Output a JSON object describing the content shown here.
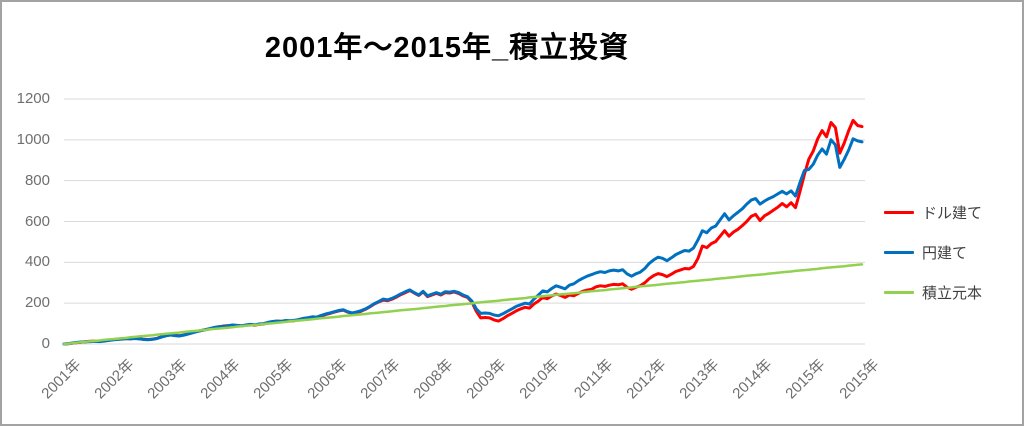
{
  "title": "2001年～2015年_積立投資",
  "legend": {
    "position": "right",
    "items": [
      {
        "label": "ドル建て",
        "color": "#FF0000"
      },
      {
        "label": "円建て",
        "color": "#0070C0"
      },
      {
        "label": "積立元本",
        "color": "#92D050"
      }
    ]
  },
  "chart_data": {
    "type": "line",
    "title": "2001年～2015年_積立投資",
    "xlabel": "",
    "ylabel": "",
    "x_unit": "month",
    "x_start": "2001-01",
    "x_end": "2016-01",
    "xtick_labels": [
      "2001年",
      "2002年",
      "2003年",
      "2004年",
      "2005年",
      "2006年",
      "2007年",
      "2008年",
      "2009年",
      "2010年",
      "2011年",
      "2012年",
      "2013年",
      "2014年",
      "2015年",
      "2015年"
    ],
    "yticks": [
      0,
      200,
      400,
      600,
      800,
      1000,
      1200
    ],
    "ylim": [
      0,
      1200
    ],
    "grid": "horizontal",
    "gridline_color": "#d9d9d9",
    "axis_label_color": "#6f6f6f",
    "legend_position": "right",
    "series": [
      {
        "name": "ドル建て",
        "key": "dollar",
        "color": "#FF0000",
        "width": 3,
        "values": [
          0,
          2,
          4,
          7,
          9,
          12,
          13,
          14,
          13,
          15,
          18,
          21,
          24,
          26,
          27,
          26,
          28,
          26,
          23,
          22,
          24,
          28,
          36,
          41,
          45,
          42,
          40,
          44,
          50,
          56,
          62,
          66,
          70,
          74,
          80,
          84,
          88,
          90,
          92,
          90,
          88,
          92,
          94,
          92,
          96,
          98,
          104,
          108,
          112,
          110,
          114,
          112,
          114,
          118,
          124,
          126,
          130,
          128,
          136,
          144,
          150,
          156,
          162,
          166,
          156,
          150,
          154,
          160,
          170,
          182,
          196,
          206,
          215,
          212,
          220,
          230,
          242,
          252,
          262,
          250,
          238,
          255,
          232,
          240,
          248,
          240,
          252,
          250,
          255,
          248,
          236,
          228,
          205,
          160,
          128,
          130,
          128,
          118,
          112,
          124,
          138,
          150,
          162,
          172,
          180,
          176,
          196,
          210,
          228,
          222,
          235,
          245,
          238,
          228,
          240,
          236,
          248,
          258,
          264,
          268,
          280,
          285,
          282,
          288,
          292,
          290,
          295,
          278,
          268,
          278,
          285,
          300,
          320,
          335,
          345,
          340,
          330,
          342,
          355,
          362,
          370,
          368,
          380,
          420,
          480,
          472,
          492,
          502,
          528,
          555,
          528,
          548,
          562,
          580,
          600,
          625,
          635,
          605,
          628,
          640,
          655,
          670,
          688,
          672,
          692,
          668,
          745,
          830,
          905,
          945,
          1005,
          1045,
          1015,
          1085,
          1060,
          935,
          985,
          1045,
          1095,
          1070,
          1065
        ]
      },
      {
        "name": "円建て",
        "key": "yen",
        "color": "#0070C0",
        "width": 3,
        "values": [
          0,
          2,
          5,
          8,
          10,
          11,
          12,
          13,
          12,
          14,
          17,
          20,
          22,
          24,
          26,
          25,
          27,
          25,
          22,
          21,
          23,
          27,
          34,
          40,
          44,
          41,
          39,
          43,
          49,
          55,
          61,
          66,
          71,
          76,
          82,
          85,
          86,
          89,
          93,
          91,
          89,
          93,
          96,
          94,
          98,
          100,
          106,
          110,
          112,
          111,
          115,
          114,
          116,
          120,
          126,
          129,
          133,
          132,
          140,
          147,
          152,
          158,
          164,
          168,
          158,
          152,
          157,
          163,
          172,
          184,
          198,
          208,
          220,
          216,
          224,
          234,
          246,
          256,
          265,
          252,
          240,
          258,
          236,
          244,
          252,
          244,
          256,
          254,
          258,
          252,
          240,
          232,
          210,
          172,
          150,
          152,
          150,
          142,
          138,
          148,
          160,
          172,
          184,
          192,
          200,
          196,
          220,
          240,
          260,
          255,
          272,
          285,
          278,
          270,
          288,
          295,
          310,
          322,
          332,
          340,
          348,
          354,
          350,
          358,
          362,
          358,
          364,
          344,
          332,
          344,
          352,
          370,
          395,
          412,
          425,
          420,
          408,
          422,
          438,
          448,
          458,
          455,
          470,
          510,
          555,
          545,
          568,
          578,
          608,
          638,
          608,
          628,
          645,
          662,
          685,
          705,
          712,
          685,
          700,
          712,
          722,
          735,
          748,
          735,
          750,
          725,
          790,
          850,
          855,
          880,
          925,
          955,
          930,
          1000,
          975,
          865,
          905,
          950,
          1005,
          995,
          990
        ]
      },
      {
        "name": "積立元本",
        "key": "principal",
        "color": "#92D050",
        "width": 2.5,
        "values": [
          0,
          2,
          4,
          7,
          9,
          11,
          13,
          15,
          17,
          20,
          22,
          24,
          26,
          28,
          30,
          33,
          35,
          37,
          39,
          41,
          43,
          46,
          48,
          50,
          52,
          54,
          56,
          59,
          61,
          63,
          65,
          67,
          69,
          72,
          74,
          76,
          78,
          80,
          82,
          85,
          87,
          89,
          91,
          93,
          95,
          98,
          100,
          102,
          104,
          106,
          108,
          111,
          113,
          115,
          117,
          119,
          121,
          124,
          126,
          128,
          130,
          132,
          134,
          137,
          139,
          141,
          143,
          145,
          147,
          150,
          152,
          154,
          156,
          158,
          160,
          163,
          165,
          167,
          169,
          171,
          173,
          176,
          178,
          180,
          182,
          184,
          186,
          189,
          191,
          193,
          195,
          197,
          199,
          202,
          204,
          206,
          208,
          210,
          212,
          215,
          217,
          219,
          221,
          223,
          225,
          228,
          230,
          232,
          234,
          236,
          238,
          241,
          243,
          245,
          247,
          249,
          251,
          254,
          256,
          258,
          260,
          262,
          264,
          267,
          269,
          271,
          273,
          275,
          277,
          280,
          282,
          284,
          286,
          288,
          290,
          293,
          295,
          297,
          299,
          301,
          303,
          306,
          308,
          310,
          312,
          314,
          316,
          319,
          321,
          323,
          325,
          327,
          329,
          332,
          334,
          336,
          338,
          340,
          342,
          345,
          347,
          349,
          351,
          353,
          355,
          358,
          360,
          362,
          364,
          366,
          368,
          371,
          373,
          375,
          377,
          379,
          381,
          384,
          386,
          388,
          390
        ]
      }
    ]
  }
}
